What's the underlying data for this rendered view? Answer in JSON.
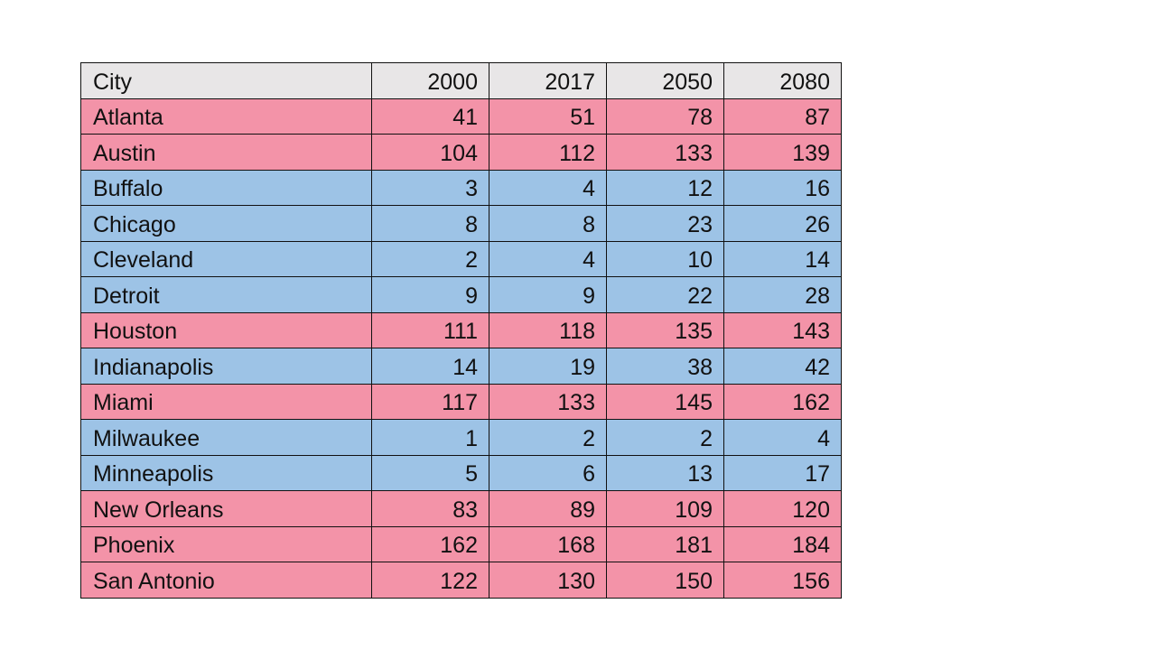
{
  "table": {
    "headers": [
      "City",
      "2000",
      "2017",
      "2050",
      "2080"
    ],
    "colors": {
      "header": "#e8e6e7",
      "red": "#f393a8",
      "blue": "#9dc3e6"
    },
    "rows": [
      {
        "city": "Atlanta",
        "values": [
          "41",
          "51",
          "78",
          "87"
        ],
        "color": "red"
      },
      {
        "city": "Austin",
        "values": [
          "104",
          "112",
          "133",
          "139"
        ],
        "color": "red"
      },
      {
        "city": "Buffalo",
        "values": [
          "3",
          "4",
          "12",
          "16"
        ],
        "color": "blue"
      },
      {
        "city": "Chicago",
        "values": [
          "8",
          "8",
          "23",
          "26"
        ],
        "color": "blue"
      },
      {
        "city": "Cleveland",
        "values": [
          "2",
          "4",
          "10",
          "14"
        ],
        "color": "blue"
      },
      {
        "city": "Detroit",
        "values": [
          "9",
          "9",
          "22",
          "28"
        ],
        "color": "blue"
      },
      {
        "city": "Houston",
        "values": [
          "111",
          "118",
          "135",
          "143"
        ],
        "color": "red"
      },
      {
        "city": "Indianapolis",
        "values": [
          "14",
          "19",
          "38",
          "42"
        ],
        "color": "blue"
      },
      {
        "city": "Miami",
        "values": [
          "117",
          "133",
          "145",
          "162"
        ],
        "color": "red"
      },
      {
        "city": "Milwaukee",
        "values": [
          "1",
          "2",
          "2",
          "4"
        ],
        "color": "blue"
      },
      {
        "city": "Minneapolis",
        "values": [
          "5",
          "6",
          "13",
          "17"
        ],
        "color": "blue"
      },
      {
        "city": "New Orleans",
        "values": [
          "83",
          "89",
          "109",
          "120"
        ],
        "color": "red"
      },
      {
        "city": "Phoenix",
        "values": [
          "162",
          "168",
          "181",
          "184"
        ],
        "color": "red"
      },
      {
        "city": "San Antonio",
        "values": [
          "122",
          "130",
          "150",
          "156"
        ],
        "color": "red"
      }
    ]
  }
}
